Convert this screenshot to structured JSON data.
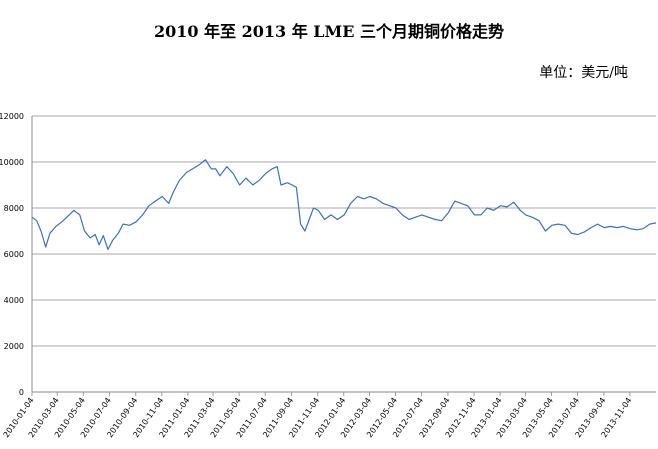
{
  "chart_data": {
    "type": "line",
    "title": "2010 年至 2013 年 LME 三个月期铜价格走势",
    "unit": "单位：美元/吨",
    "xlabel": "",
    "ylabel": "",
    "ylim": [
      0,
      12000
    ],
    "y_ticks": [
      "0",
      "2000",
      "4000",
      "6000",
      "8000",
      "10000",
      "12000"
    ],
    "x_range": [
      "2010-01-04",
      "2014-01-04"
    ],
    "x_ticks": [
      "2010-01-04",
      "2010-03-04",
      "2010-05-04",
      "2010-07-04",
      "2010-09-04",
      "2010-11-04",
      "2011-01-04",
      "2011-03-04",
      "2011-05-04",
      "2011-07-04",
      "2011-09-04",
      "2011-11-04",
      "2012-01-04",
      "2012-03-04",
      "2012-05-04",
      "2012-07-04",
      "2012-09-04",
      "2012-11-04",
      "2013-01-04",
      "2013-03-04",
      "2013-05-04",
      "2013-07-04",
      "2013-09-04",
      "2013-11-04"
    ],
    "grid": true,
    "series": [
      {
        "color": "#3f70b5",
        "points": [
          [
            "2010-01-04",
            7600
          ],
          [
            "2010-01-15",
            7450
          ],
          [
            "2010-01-25",
            7000
          ],
          [
            "2010-02-05",
            6300
          ],
          [
            "2010-02-15",
            6900
          ],
          [
            "2010-03-01",
            7200
          ],
          [
            "2010-03-15",
            7400
          ],
          [
            "2010-04-01",
            7700
          ],
          [
            "2010-04-12",
            7900
          ],
          [
            "2010-04-26",
            7700
          ],
          [
            "2010-05-07",
            7000
          ],
          [
            "2010-05-20",
            6700
          ],
          [
            "2010-06-01",
            6850
          ],
          [
            "2010-06-10",
            6400
          ],
          [
            "2010-06-20",
            6800
          ],
          [
            "2010-07-01",
            6200
          ],
          [
            "2010-07-12",
            6600
          ],
          [
            "2010-07-25",
            6900
          ],
          [
            "2010-08-05",
            7300
          ],
          [
            "2010-08-20",
            7250
          ],
          [
            "2010-09-05",
            7400
          ],
          [
            "2010-09-20",
            7700
          ],
          [
            "2010-10-05",
            8100
          ],
          [
            "2010-10-20",
            8300
          ],
          [
            "2010-11-05",
            8500
          ],
          [
            "2010-11-20",
            8200
          ],
          [
            "2010-12-01",
            8700
          ],
          [
            "2010-12-15",
            9200
          ],
          [
            "2011-01-01",
            9550
          ],
          [
            "2011-01-15",
            9700
          ],
          [
            "2011-02-01",
            9900
          ],
          [
            "2011-02-14",
            10100
          ],
          [
            "2011-02-28",
            9700
          ],
          [
            "2011-03-10",
            9700
          ],
          [
            "2011-03-20",
            9400
          ],
          [
            "2011-04-05",
            9800
          ],
          [
            "2011-04-20",
            9500
          ],
          [
            "2011-05-05",
            9000
          ],
          [
            "2011-05-20",
            9300
          ],
          [
            "2011-06-05",
            9000
          ],
          [
            "2011-06-20",
            9200
          ],
          [
            "2011-07-05",
            9500
          ],
          [
            "2011-07-20",
            9700
          ],
          [
            "2011-08-01",
            9800
          ],
          [
            "2011-08-10",
            9000
          ],
          [
            "2011-08-25",
            9100
          ],
          [
            "2011-09-05",
            9000
          ],
          [
            "2011-09-15",
            8900
          ],
          [
            "2011-09-25",
            7300
          ],
          [
            "2011-10-05",
            7000
          ],
          [
            "2011-10-15",
            7500
          ],
          [
            "2011-10-25",
            8000
          ],
          [
            "2011-11-05",
            7900
          ],
          [
            "2011-11-20",
            7500
          ],
          [
            "2011-12-05",
            7700
          ],
          [
            "2011-12-20",
            7500
          ],
          [
            "2012-01-05",
            7700
          ],
          [
            "2012-01-20",
            8200
          ],
          [
            "2012-02-05",
            8500
          ],
          [
            "2012-02-20",
            8400
          ],
          [
            "2012-03-05",
            8500
          ],
          [
            "2012-03-20",
            8400
          ],
          [
            "2012-04-05",
            8200
          ],
          [
            "2012-04-20",
            8100
          ],
          [
            "2012-05-05",
            8000
          ],
          [
            "2012-05-20",
            7700
          ],
          [
            "2012-06-05",
            7500
          ],
          [
            "2012-06-20",
            7600
          ],
          [
            "2012-07-05",
            7700
          ],
          [
            "2012-07-20",
            7600
          ],
          [
            "2012-08-05",
            7500
          ],
          [
            "2012-08-20",
            7450
          ],
          [
            "2012-09-05",
            7800
          ],
          [
            "2012-09-20",
            8300
          ],
          [
            "2012-10-05",
            8200
          ],
          [
            "2012-10-20",
            8100
          ],
          [
            "2012-11-05",
            7700
          ],
          [
            "2012-11-20",
            7700
          ],
          [
            "2012-12-05",
            8000
          ],
          [
            "2012-12-20",
            7900
          ],
          [
            "2013-01-05",
            8100
          ],
          [
            "2013-01-20",
            8050
          ],
          [
            "2013-02-05",
            8250
          ],
          [
            "2013-02-20",
            7900
          ],
          [
            "2013-03-05",
            7700
          ],
          [
            "2013-03-20",
            7600
          ],
          [
            "2013-04-05",
            7450
          ],
          [
            "2013-04-20",
            7000
          ],
          [
            "2013-05-05",
            7250
          ],
          [
            "2013-05-20",
            7300
          ],
          [
            "2013-06-05",
            7250
          ],
          [
            "2013-06-20",
            6900
          ],
          [
            "2013-07-05",
            6850
          ],
          [
            "2013-07-20",
            6950
          ],
          [
            "2013-08-05",
            7150
          ],
          [
            "2013-08-20",
            7300
          ],
          [
            "2013-09-05",
            7150
          ],
          [
            "2013-09-20",
            7200
          ],
          [
            "2013-10-05",
            7150
          ],
          [
            "2013-10-20",
            7200
          ],
          [
            "2013-11-05",
            7100
          ],
          [
            "2013-11-20",
            7050
          ],
          [
            "2013-12-05",
            7100
          ],
          [
            "2013-12-20",
            7300
          ],
          [
            "2014-01-04",
            7350
          ]
        ]
      }
    ]
  }
}
